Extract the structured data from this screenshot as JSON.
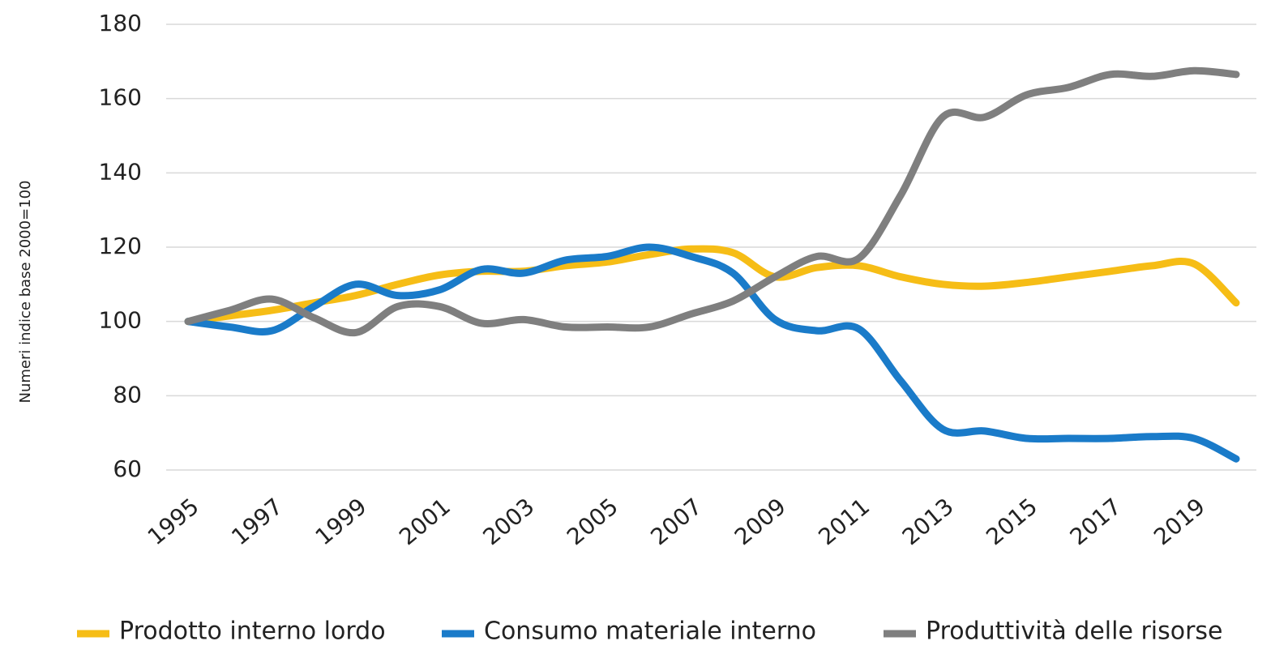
{
  "chart_data": {
    "type": "line",
    "y_label": "Numeri indice base 2000=100",
    "categories": [
      "1995",
      null,
      "1997",
      null,
      "1999",
      null,
      "2001",
      null,
      "2003",
      null,
      "2005",
      null,
      "2007",
      null,
      "2009",
      null,
      "2011",
      null,
      "2013",
      null,
      "2015",
      null,
      "2017",
      null,
      "2019",
      null
    ],
    "series": [
      {
        "name": "Prodotto interno lordo",
        "color": "#f6bd16",
        "values": [
          100,
          101.5,
          103,
          105,
          107,
          110,
          112.5,
          113.5,
          113.5,
          115,
          116,
          118,
          119.5,
          118.5,
          112,
          114.5,
          115,
          112,
          110,
          109.5,
          110.5,
          112,
          113.5,
          115,
          115.5,
          105
        ]
      },
      {
        "name": "Consumo materiale interno",
        "color": "#1a7bc9",
        "values": [
          100,
          98.5,
          97.5,
          104,
          110,
          107,
          108.5,
          114,
          113,
          116.5,
          117.5,
          120,
          117.5,
          113,
          100.5,
          97.5,
          98,
          84,
          71,
          70.5,
          68.5,
          68.5,
          68.5,
          69,
          68.5,
          63
        ]
      },
      {
        "name": "Produttività delle risorse",
        "color": "#7f7f7f",
        "values": [
          100,
          103,
          106,
          101,
          97,
          104,
          104,
          99.5,
          100.5,
          98.5,
          98.5,
          98.5,
          102,
          105.5,
          112,
          117.5,
          117,
          134,
          155,
          155,
          161,
          163,
          166.5,
          166,
          167.5,
          166.5
        ]
      }
    ],
    "ylim": [
      60,
      180
    ],
    "yticks": [
      60,
      80,
      100,
      120,
      140,
      160,
      180
    ],
    "grid": true,
    "legend": "bottom"
  }
}
